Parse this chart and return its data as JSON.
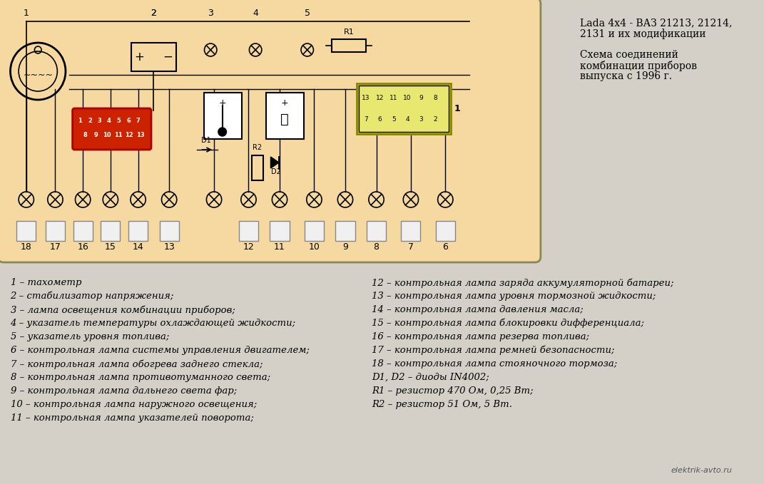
{
  "bg_color": "#f5d9a0",
  "outer_bg": "#d4d0c8",
  "title_line1": "Lada 4x4 - ВАЗ 21213, 21214,",
  "title_line2": "2131 и их модификации",
  "subtitle_line1": "Схема соединений",
  "subtitle_line2": "комбинации приборов",
  "subtitle_line3": "выпуска с 1996 г.",
  "watermark": "elektrik-avto.ru",
  "legend_left": [
    "1 – тахометр",
    "2 – стабилизатор напряжения;",
    "3 – лампа освещения комбинации приборов;",
    "4 – указатель температуры охлаждающей жидкости;",
    "5 – указатель уровня топлива;",
    "6 – контрольная лампа системы управления двигателем;",
    "7 – контрольная лампа обогрева заднего стекла;",
    "8 – контрольная лампа противотуманного света;",
    "9 – контрольная лампа дальнего света фар;",
    "10 – контрольная лампа наружного освещения;",
    "11 – контрольная лампа указателей поворота;"
  ],
  "legend_right": [
    "12 – контрольная лампа заряда аккумуляторной батареи;",
    "13 – контрольная лампа уровня тормозной жидкости;",
    "14 – контрольная лампа давления масла;",
    "15 – контрольная лампа блокировки дифференциала;",
    "16 – контрольная лампа резерва топлива;",
    "17 – контрольная лампа ремней безопасности;",
    "18 – контрольная лампа стояночного тормоза;",
    "D1, D2 – диоды IN4002;",
    "R1 – резистор 470 Ом, 0,25 Вт;",
    "R2 – резистор 51 Ом, 5 Вт."
  ],
  "num_labels_bottom": [
    "18",
    "17",
    "16",
    "15",
    "14",
    "13",
    "",
    "12",
    "11",
    "10",
    "9",
    "8",
    "7",
    "6"
  ],
  "num_labels_top": [
    "1",
    "",
    "2",
    "",
    "3",
    "4",
    "",
    "5"
  ],
  "connector_top_row": [
    "13",
    "12",
    "11",
    "10",
    "9",
    "8"
  ],
  "connector_bottom_row": [
    "7",
    "6",
    "5",
    "4",
    "3",
    "2"
  ],
  "connector_label": "1"
}
